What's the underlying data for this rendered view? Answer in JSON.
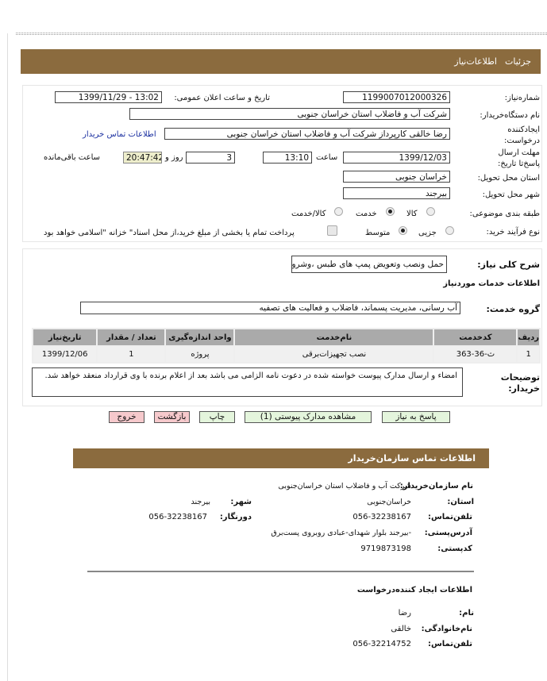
{
  "tabs": {
    "details": "جزئیات",
    "need_info": "اطلاعات‌نیاز"
  },
  "form": {
    "need_number_label": "شماره‌نیاز:",
    "need_number": "1199007012000326",
    "announce_label": "تاریخ و ساعت اعلان عمومی:",
    "announce_value": "1399/11/29 - 13:02",
    "buyer_label": "نام دستگاه‌خریدار:",
    "buyer_value": "شرکت آب و فاضلاب استان خراسان جنوبی",
    "creator_label": "ایجادکننده درخواست:",
    "creator_value": "رضا خالقی کارپرداز شرکت آب و فاضلاب استان خراسان جنوبی",
    "contact_link": "اطلاعات تماس خریدار",
    "deadline_label": "مهلت ارسال پاسخ‌تا تاریخ:",
    "deadline_date": "1399/12/03",
    "time_label": "ساعت",
    "deadline_time": "13:10",
    "days": "3",
    "days_label": "روز و",
    "remaining": "20:47:42",
    "remaining_label": "ساعت باقی‌مانده",
    "province_label": "استان محل تحویل:",
    "province_value": "خراسان جنوبی",
    "city_label": "شهر محل تحویل:",
    "city_value": "بیرجند",
    "category_label": "طبقه بندی موضوعی:",
    "category_options": [
      "کالا",
      "خدمت",
      "کالا/خدمت"
    ],
    "category_selected": "خدمت",
    "process_label": "نوع فرآیند خرید:",
    "process_options": [
      "جزیی",
      "متوسط"
    ],
    "process_selected": "متوسط",
    "treasury_text": "پرداخت تمام یا بخشی از مبلغ خرید،از محل اسناد\" خزانه \"اسلامی خواهد بود",
    "treasury_checked": false
  },
  "services": {
    "summary_label": "شرح کلی نیاز:",
    "summary_value": "حمل ونصب وتعویض پمپ های طبس ،وشرویه",
    "section_title": "اطلاعات خدمات موردنیاز",
    "group_label": "گروه خدمت:",
    "group_value": "آب رسانی، مدیریت پسماند، فاضلاب و فعالیت های تصفیه",
    "columns": [
      "ردیف",
      "کدخدمت",
      "نام‌خدمت",
      "واحد اندازه‌گیری",
      "تعداد / مقدار",
      "تاریخ‌نیاز"
    ],
    "rows": [
      [
        "1",
        "ث-36-363",
        "نصب تجهیزات‌برقی",
        "پروژه",
        "1",
        "1399/12/06"
      ]
    ],
    "notes_label": "توضیحات خریدار:",
    "notes_value": "امضاء و ارسال مدارک پیوست خواسته شده در دعوت نامه الزامی می باشد بعد از اعلام برنده با وی قرارداد منعقد خواهد شد."
  },
  "buttons": {
    "reply": "پاسخ به نیاز",
    "attachments": "مشاهده مدارک پیوستی (1)",
    "print": "چاپ",
    "back": "بازگشت",
    "exit": "خروج"
  },
  "contact": {
    "title": "اطلاعات تماس سازمان‌خریدار",
    "org_label": "نام سازمان‌خریدار:",
    "org_value": "شرکت آب و فاضلاب استان خراسان‌جنوبی",
    "province_label": "استان:",
    "province_value": "خراسان‌جنوبی",
    "city_label": "شهر:",
    "city_value": "بیرجند",
    "phone_label": "تلفن‌تماس:",
    "phone_value": "056-32238167",
    "fax_label": "دورنگار:",
    "fax_value": "056-32238167",
    "address_label": "آدرس‌پستی:",
    "address_value": "-بیرجند بلوار شهدای-عبادی روبروی پست‌برق",
    "postal_label": "کدپستی:",
    "postal_value": "9719873198",
    "creator_title": "اطلاعات ایجاد کننده‌درخواست",
    "name_label": "نام:",
    "name_value": "رضا",
    "family_label": "نام‌خانوادگی:",
    "family_value": "خالقی",
    "creator_phone_label": "تلفن‌تماس:",
    "creator_phone_value": "056-32214752"
  }
}
